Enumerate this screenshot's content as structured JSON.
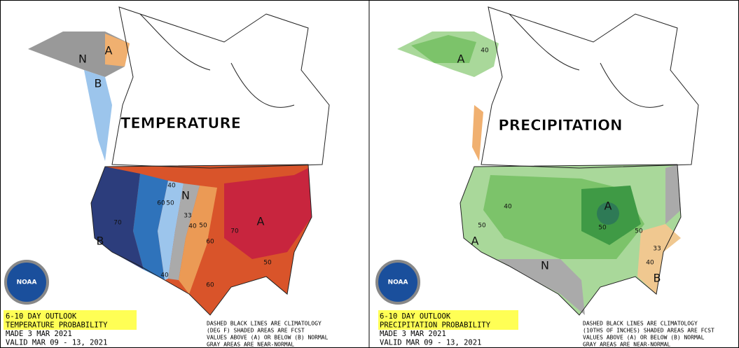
{
  "panels": [
    {
      "title": "TEMPERATURE",
      "outlook": [
        "6-10 DAY OUTLOOK",
        "TEMPERATURE PROBABILITY",
        "MADE  3 MAR 2021",
        "VALID  MAR 09 - 13, 2021"
      ],
      "notes": [
        "DASHED BLACK LINES ARE CLIMATOLOGY",
        "(DEG F) SHADED AREAS ARE FCST",
        "VALUES ABOVE (A) OR BELOW (B) NORMAL",
        "GRAY AREAS ARE NEAR-NORMAL"
      ],
      "logo": "NOAA",
      "labels": [
        "A",
        "N",
        "B",
        "N",
        "A",
        "B",
        "70",
        "60",
        "50",
        "40",
        "33",
        "40",
        "50",
        "60",
        "70",
        "50",
        "40",
        "60"
      ]
    },
    {
      "title": "PRECIPITATION",
      "outlook": [
        "6-10 DAY OUTLOOK",
        "PRECIPITATION PROBABILITY",
        "MADE  3 MAR 2021",
        "VALID  MAR 09 - 13, 2021"
      ],
      "notes": [
        "DASHED BLACK LINES ARE CLIMATOLOGY",
        "(10THS OF INCHES) SHADED AREAS ARE FCST",
        "VALUES ABOVE (A) OR BELOW (B) NORMAL",
        "GRAY AREAS ARE NEAR-NORMAL"
      ],
      "logo": "NOAA",
      "labels": [
        "A",
        "40",
        "A",
        "N",
        "B",
        "A",
        "50",
        "40",
        "50",
        "33",
        "40",
        "50"
      ]
    }
  ]
}
